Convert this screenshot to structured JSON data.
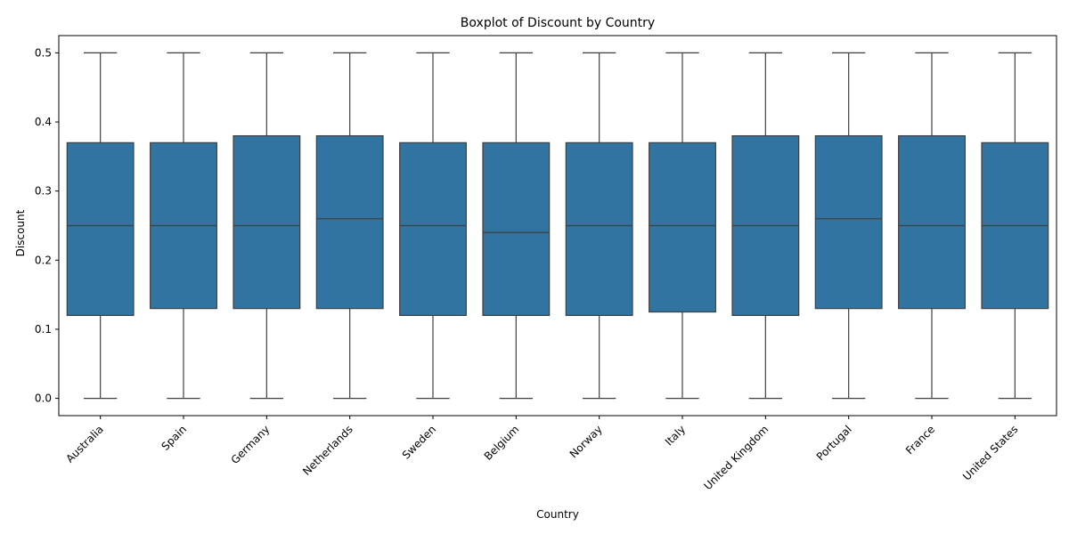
{
  "chart_data": {
    "type": "boxplot",
    "title": "Boxplot of Discount by Country",
    "xlabel": "Country",
    "ylabel": "Discount",
    "ylim": [
      -0.025,
      0.525
    ],
    "yticks": [
      0.0,
      0.1,
      0.2,
      0.3,
      0.4,
      0.5
    ],
    "ytick_labels": [
      "0.0",
      "0.1",
      "0.2",
      "0.3",
      "0.4",
      "0.5"
    ],
    "grid": false,
    "legend": "none",
    "box_color": "#3274a1",
    "line_color": "#3f3f3f",
    "categories": [
      "Australia",
      "Spain",
      "Germany",
      "Netherlands",
      "Sweden",
      "Belgium",
      "Norway",
      "Italy",
      "United Kingdom",
      "Portugal",
      "France",
      "United States"
    ],
    "boxes": [
      {
        "min": 0.0,
        "q1": 0.12,
        "median": 0.25,
        "q3": 0.37,
        "max": 0.5
      },
      {
        "min": 0.0,
        "q1": 0.13,
        "median": 0.25,
        "q3": 0.37,
        "max": 0.5
      },
      {
        "min": 0.0,
        "q1": 0.13,
        "median": 0.25,
        "q3": 0.38,
        "max": 0.5
      },
      {
        "min": 0.0,
        "q1": 0.13,
        "median": 0.26,
        "q3": 0.38,
        "max": 0.5
      },
      {
        "min": 0.0,
        "q1": 0.12,
        "median": 0.25,
        "q3": 0.37,
        "max": 0.5
      },
      {
        "min": 0.0,
        "q1": 0.12,
        "median": 0.24,
        "q3": 0.37,
        "max": 0.5
      },
      {
        "min": 0.0,
        "q1": 0.12,
        "median": 0.25,
        "q3": 0.37,
        "max": 0.5
      },
      {
        "min": 0.0,
        "q1": 0.125,
        "median": 0.25,
        "q3": 0.37,
        "max": 0.5
      },
      {
        "min": 0.0,
        "q1": 0.12,
        "median": 0.25,
        "q3": 0.38,
        "max": 0.5
      },
      {
        "min": 0.0,
        "q1": 0.13,
        "median": 0.26,
        "q3": 0.38,
        "max": 0.5
      },
      {
        "min": 0.0,
        "q1": 0.13,
        "median": 0.25,
        "q3": 0.38,
        "max": 0.5
      },
      {
        "min": 0.0,
        "q1": 0.13,
        "median": 0.25,
        "q3": 0.37,
        "max": 0.5
      }
    ]
  }
}
